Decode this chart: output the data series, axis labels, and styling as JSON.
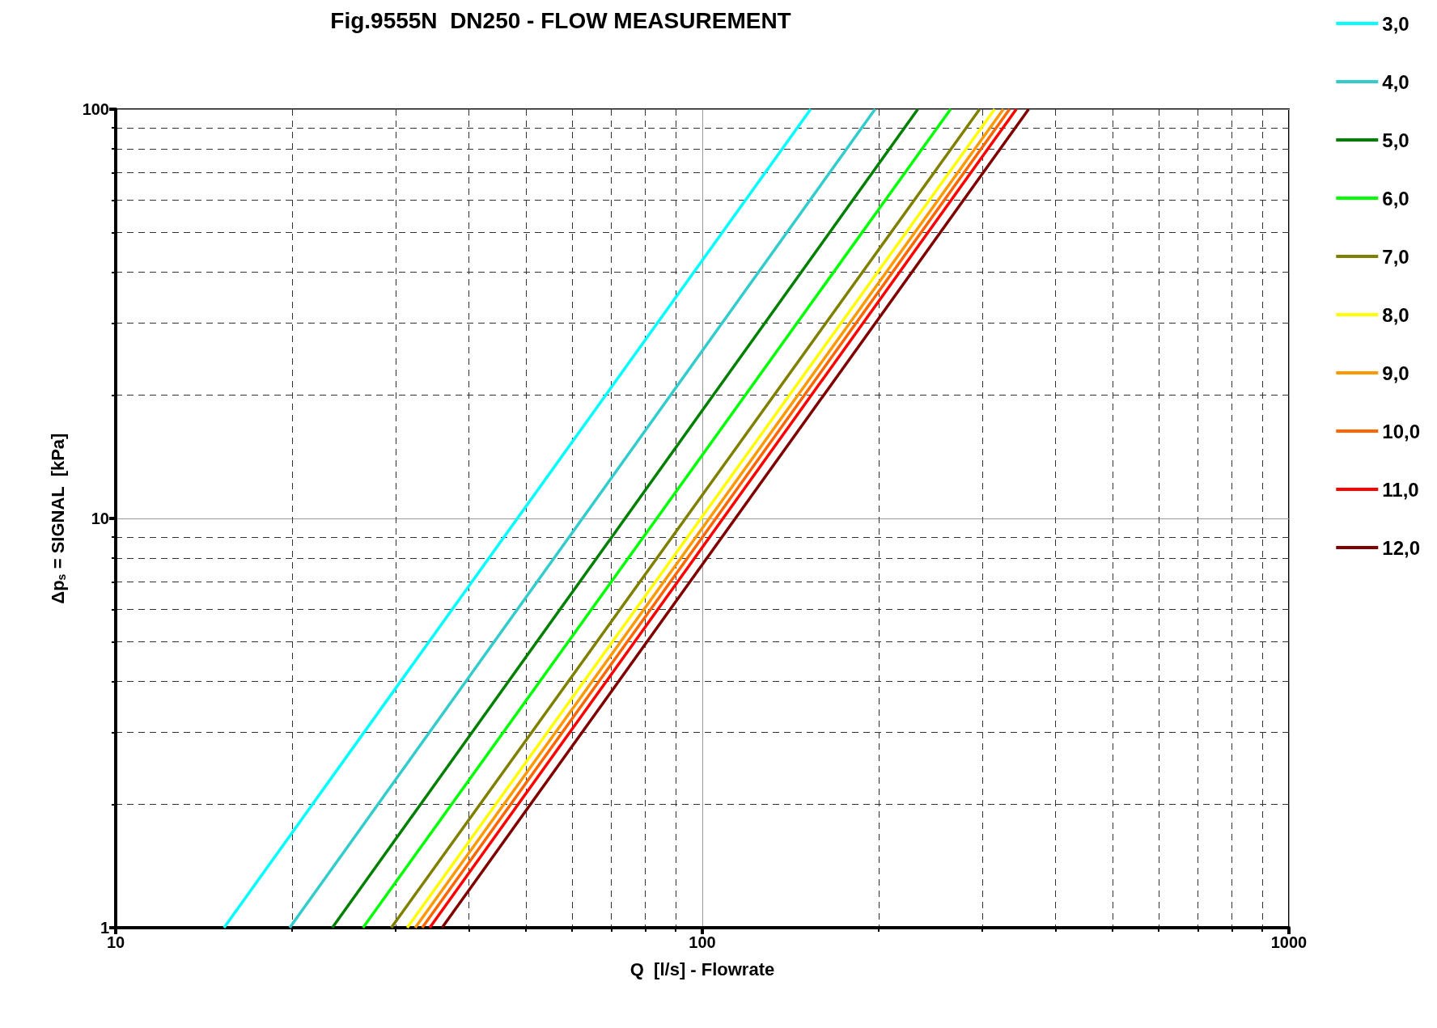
{
  "chart_data": {
    "type": "line",
    "title": "Fig.9555N  DN250 - FLOW MEASUREMENT",
    "xlabel": "Q  [l/s] - Flowrate",
    "ylabel": "Δp$_{s}$ = SIGNAL  [kPa]",
    "log": "xy",
    "xlim": [
      10,
      1000
    ],
    "ylim": [
      1,
      100
    ],
    "xticks": [
      10,
      100,
      1000
    ],
    "yticks": [
      1,
      10,
      100
    ],
    "grid": true,
    "legend": "right",
    "marker": "none",
    "line_style": "solid",
    "series": [
      {
        "name": "3,0",
        "color": "#00ffff",
        "x": [
          15.3,
          153
        ],
        "values": [
          1,
          100
        ]
      },
      {
        "name": "4,0",
        "color": "#33cccc",
        "x": [
          19.8,
          197
        ],
        "values": [
          1,
          100
        ]
      },
      {
        "name": "5,0",
        "color": "#008000",
        "x": [
          23.4,
          233
        ],
        "values": [
          1,
          100
        ]
      },
      {
        "name": "6,0",
        "color": "#00ff00",
        "x": [
          26.4,
          265
        ],
        "values": [
          1,
          100
        ]
      },
      {
        "name": "7,0",
        "color": "#808000",
        "x": [
          29.5,
          297
        ],
        "values": [
          1,
          100
        ]
      },
      {
        "name": "8,0",
        "color": "#ffff00",
        "x": [
          31.4,
          315
        ],
        "values": [
          1,
          100
        ]
      },
      {
        "name": "9,0",
        "color": "#ff9900",
        "x": [
          32.4,
          326
        ],
        "values": [
          1,
          100
        ]
      },
      {
        "name": "10,0",
        "color": "#ff6600",
        "x": [
          33.3,
          334
        ],
        "values": [
          1,
          100
        ]
      },
      {
        "name": "11,0",
        "color": "#ff0000",
        "x": [
          34.3,
          343
        ],
        "values": [
          1,
          100
        ]
      },
      {
        "name": "12,0",
        "color": "#800000",
        "x": [
          36.0,
          360
        ],
        "values": [
          1,
          100
        ]
      }
    ]
  }
}
